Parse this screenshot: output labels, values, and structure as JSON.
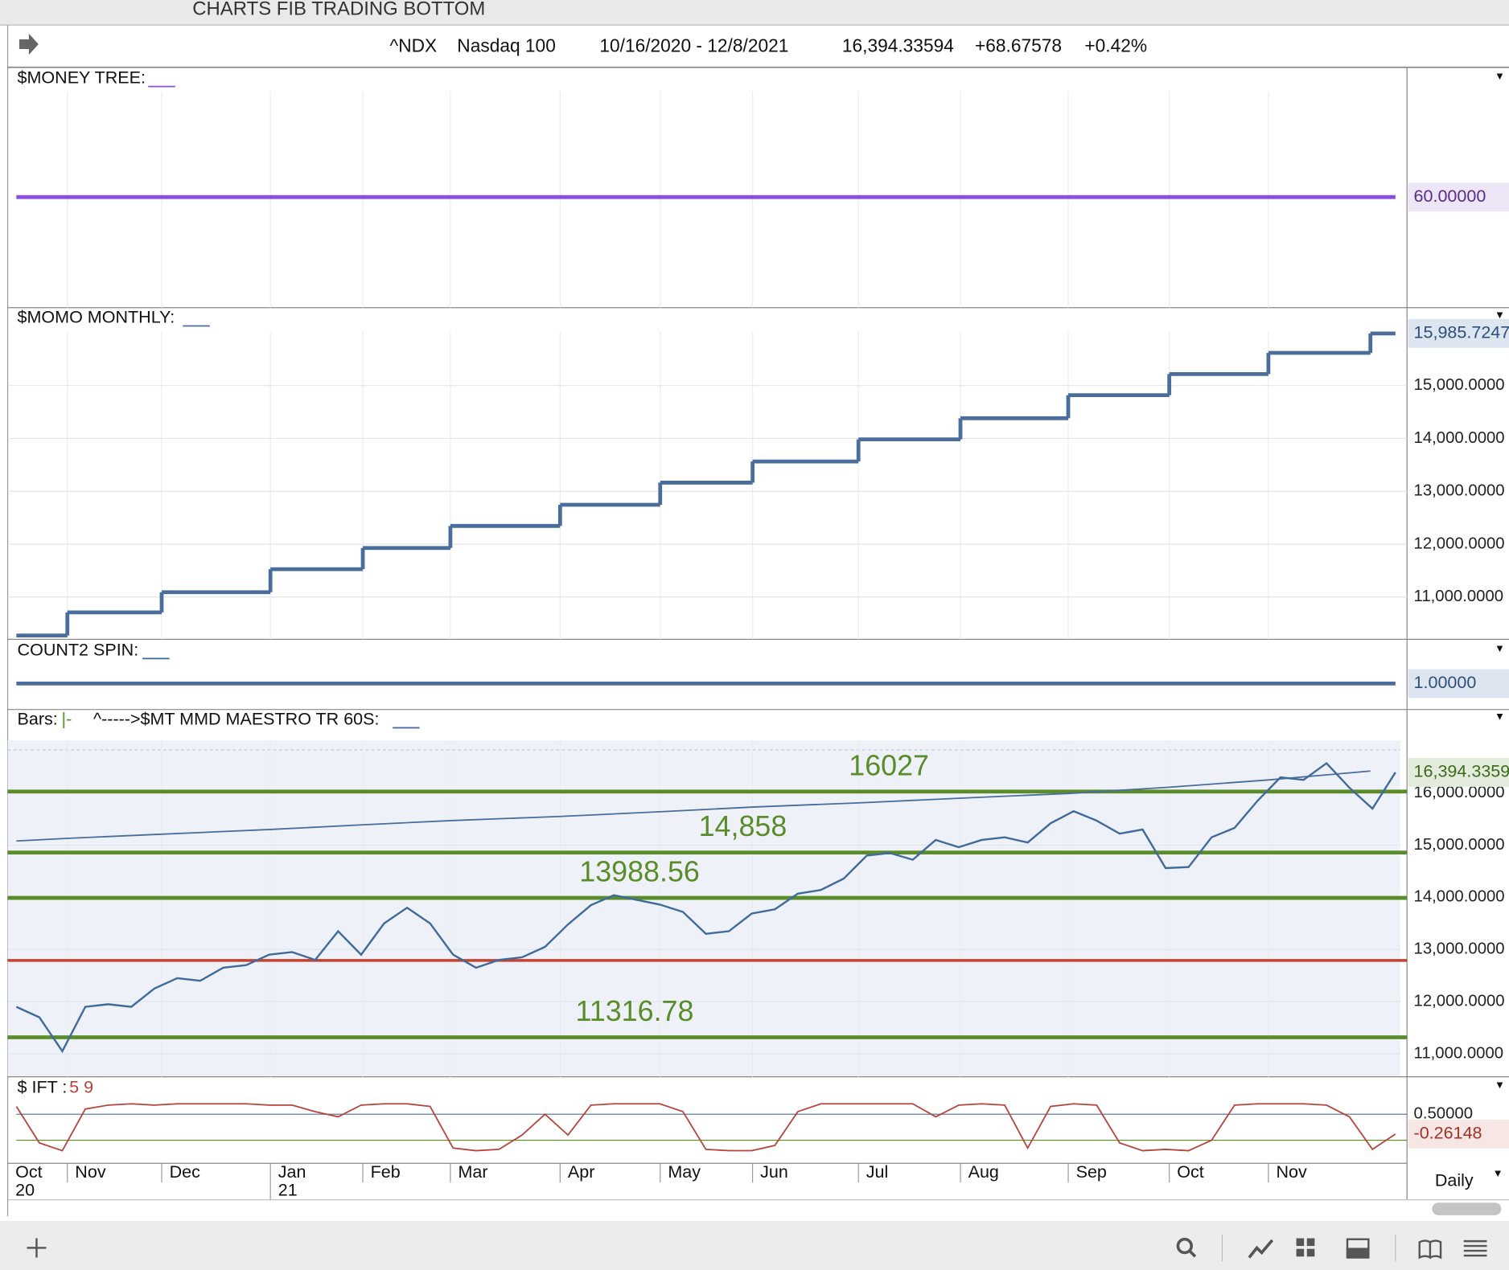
{
  "window_title": "CHARTS FIB TRADING BOTTOM",
  "header": {
    "symbol": "^NDX",
    "name": "Nasdaq 100",
    "range": "10/16/2020 - 12/8/2021",
    "last": "16,394.33594",
    "change": "+68.67578",
    "pct": "+0.42%"
  },
  "money_tree": {
    "label": "$MONEY TREE:",
    "value": 60,
    "value_label": "60.00000",
    "color": "#8a4fe0"
  },
  "momo_monthly": {
    "label": "$MOMO MONTHLY:",
    "color": "#4a6d9c",
    "values": [
      10273,
      10709,
      11091,
      11527,
      11927,
      12345,
      12745,
      13164,
      13564,
      13982,
      14382,
      14818,
      15218,
      15618,
      15985.7247
    ],
    "value_label": "15,985.7247",
    "ylim": [
      10200,
      16110
    ],
    "yticks": [
      {
        "value": 11000,
        "label": "11,000.0000"
      },
      {
        "value": 12000,
        "label": "12,000.0000"
      },
      {
        "value": 13000,
        "label": "13,000.0000"
      },
      {
        "value": 14000,
        "label": "14,000.0000"
      },
      {
        "value": 15000,
        "label": "15,000.0000"
      }
    ]
  },
  "count2_spin": {
    "label": "COUNT2 SPIN:",
    "value": 1,
    "value_label": "1.00000",
    "color": "#4a6d9c"
  },
  "price": {
    "label": "Bars:",
    "bar_style": "|-",
    "study": "^----->$MT MMD MAESTRO TR 60S:",
    "color": "#3f6a9a",
    "closes": [
      11900,
      11700,
      11050,
      11900,
      11950,
      11900,
      12250,
      12450,
      12400,
      12650,
      12700,
      12900,
      12950,
      12800,
      13350,
      12900,
      13500,
      13800,
      13500,
      12900,
      12650,
      12800,
      12850,
      13050,
      13480,
      13850,
      14040,
      13950,
      13860,
      13720,
      13300,
      13350,
      13690,
      13770,
      14070,
      14140,
      14360,
      14800,
      14850,
      14720,
      15100,
      14960,
      15100,
      15150,
      15050,
      15420,
      15650,
      15470,
      15220,
      15300,
      14560,
      14580,
      15150,
      15330,
      15850,
      16300,
      16250,
      16570,
      16100,
      15700,
      16394.33594
    ],
    "close_label": "16,394.3359",
    "ma": [
      15080,
      15130,
      15210,
      15300,
      15390,
      15470,
      15550,
      15640,
      15730,
      15810,
      15900,
      15990,
      16110,
      16250,
      16420
    ],
    "ma_color": "#4a6d9c",
    "ylim": [
      10560,
      17010
    ],
    "yticks": [
      {
        "value": 11000,
        "label": "11,000.0000"
      },
      {
        "value": 12000,
        "label": "12,000.0000"
      },
      {
        "value": 13000,
        "label": "13,000.0000"
      },
      {
        "value": 14000,
        "label": "14,000.0000"
      },
      {
        "value": 15000,
        "label": "15,000.0000"
      },
      {
        "value": 16000,
        "label": "16,000.0000"
      }
    ],
    "levels": [
      {
        "value": 16027,
        "label": "16027"
      },
      {
        "value": 14858,
        "label": "14,858"
      },
      {
        "value": 13988.56,
        "label": "13988.56"
      },
      {
        "value": 11316.78,
        "label": "11316.78"
      }
    ],
    "level_color": "#5b8c2a",
    "red_level": 12790,
    "red_color": "#c8412f"
  },
  "ift": {
    "label": "$ IFT :",
    "params": "5 9",
    "color": "#b5443a",
    "values": [
      0.8,
      -0.6,
      -0.9,
      0.7,
      0.85,
      0.9,
      0.85,
      0.9,
      0.9,
      0.9,
      0.9,
      0.85,
      0.85,
      0.6,
      0.4,
      0.85,
      0.9,
      0.9,
      0.8,
      -0.8,
      -0.9,
      -0.85,
      -0.3,
      0.5,
      -0.3,
      0.85,
      0.9,
      0.9,
      0.9,
      0.6,
      -0.85,
      -0.9,
      -0.9,
      -0.7,
      0.6,
      0.9,
      0.9,
      0.9,
      0.9,
      0.9,
      0.4,
      0.85,
      0.9,
      0.85,
      -0.8,
      0.8,
      0.9,
      0.85,
      -0.6,
      -0.9,
      -0.85,
      -0.9,
      -0.5,
      0.85,
      0.9,
      0.9,
      0.9,
      0.85,
      0.4,
      -0.85,
      -0.26148
    ],
    "value_label": "-0.26148",
    "ylim": [
      -1.2,
      1.2
    ],
    "upper": {
      "value": 0.5,
      "label": "0.50000"
    },
    "lower": -0.5
  },
  "x_axis": {
    "months": [
      "Oct",
      "Nov",
      "Dec",
      "Jan",
      "Feb",
      "Mar",
      "Apr",
      "May",
      "Jun",
      "Jul",
      "Aug",
      "Sep",
      "Oct",
      "Nov"
    ],
    "years": [
      "20",
      null,
      null,
      "21",
      null,
      null,
      null,
      null,
      null,
      null,
      null,
      null,
      null,
      null
    ]
  },
  "period": "Daily"
}
